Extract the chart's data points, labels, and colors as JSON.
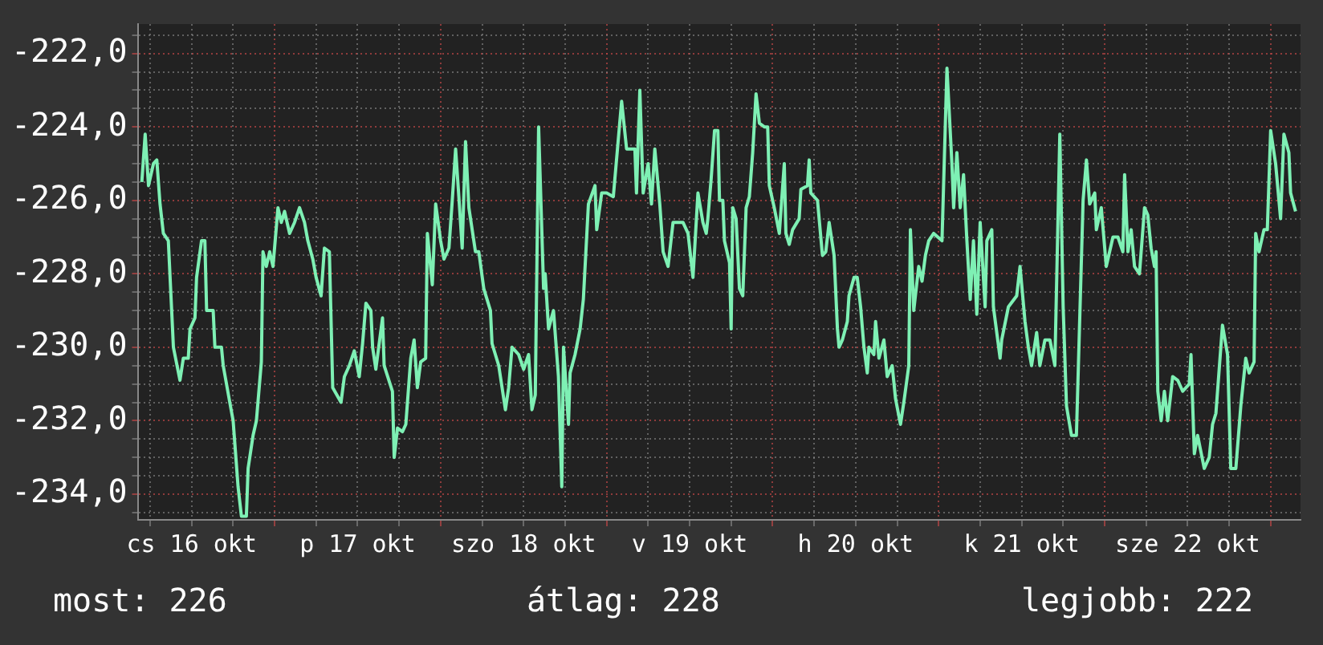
{
  "chart_data": {
    "type": "line",
    "color": "#7ef0b4",
    "marker": "none",
    "grid": true,
    "xlim": [
      "--10-16T04:19",
      "--10-23T04:19"
    ],
    "ylim": [
      -234.7,
      -221.2
    ],
    "xticks": [
      {
        "value": "--10-16T06:00",
        "label": null
      },
      {
        "value": "--10-16T12:00",
        "label": "cs 16 okt"
      },
      {
        "value": "--10-16T18:00",
        "label": null
      },
      {
        "value": "--10-17T00:00",
        "label": null
      },
      {
        "value": "--10-17T06:00",
        "label": null
      },
      {
        "value": "--10-17T12:00",
        "label": "p 17 okt"
      },
      {
        "value": "--10-17T18:00",
        "label": null
      },
      {
        "value": "--10-18T00:00",
        "label": null
      },
      {
        "value": "--10-18T06:00",
        "label": null
      },
      {
        "value": "--10-18T12:00",
        "label": "szo 18 okt"
      },
      {
        "value": "--10-18T18:00",
        "label": null
      },
      {
        "value": "--10-19T00:00",
        "label": null
      },
      {
        "value": "--10-19T06:00",
        "label": null
      },
      {
        "value": "--10-19T12:00",
        "label": "v 19 okt"
      },
      {
        "value": "--10-19T18:00",
        "label": null
      },
      {
        "value": "--10-20T00:00",
        "label": null
      },
      {
        "value": "--10-20T06:00",
        "label": null
      },
      {
        "value": "--10-20T12:00",
        "label": "h 20 okt"
      },
      {
        "value": "--10-20T18:00",
        "label": null
      },
      {
        "value": "--10-21T00:00",
        "label": null
      },
      {
        "value": "--10-21T06:00",
        "label": null
      },
      {
        "value": "--10-21T12:00",
        "label": "k 21 okt"
      },
      {
        "value": "--10-21T18:00",
        "label": null
      },
      {
        "value": "--10-22T00:00",
        "label": null
      },
      {
        "value": "--10-22T06:00",
        "label": null
      },
      {
        "value": "--10-22T12:00",
        "label": "sze 22 okt"
      },
      {
        "value": "--10-22T18:00",
        "label": null
      },
      {
        "value": "--10-23T00:00",
        "label": null
      }
    ],
    "yticks": [
      {
        "value": -221.5,
        "label": null
      },
      {
        "value": -222,
        "label": "-222,0"
      },
      {
        "value": -222.5,
        "label": null
      },
      {
        "value": -223,
        "label": null
      },
      {
        "value": -223.5,
        "label": null
      },
      {
        "value": -224,
        "label": "-224,0"
      },
      {
        "value": -224.5,
        "label": null
      },
      {
        "value": -225,
        "label": null
      },
      {
        "value": -225.5,
        "label": null
      },
      {
        "value": -226,
        "label": "-226,0"
      },
      {
        "value": -226.5,
        "label": null
      },
      {
        "value": -227,
        "label": null
      },
      {
        "value": -227.5,
        "label": null
      },
      {
        "value": -228,
        "label": "-228,0"
      },
      {
        "value": -228.5,
        "label": null
      },
      {
        "value": -229,
        "label": null
      },
      {
        "value": -229.5,
        "label": null
      },
      {
        "value": -230,
        "label": "-230,0"
      },
      {
        "value": -230.5,
        "label": null
      },
      {
        "value": -231,
        "label": null
      },
      {
        "value": -231.5,
        "label": null
      },
      {
        "value": -232,
        "label": "-232,0"
      },
      {
        "value": -232.5,
        "label": null
      },
      {
        "value": -233,
        "label": null
      },
      {
        "value": -233.5,
        "label": null
      },
      {
        "value": -234,
        "label": "-234,0"
      },
      {
        "value": -234.5,
        "label": null
      }
    ],
    "x": [
      "--10-16T04:48",
      "--10-16T05:17",
      "--10-16T05:46",
      "--10-16T06:29",
      "--10-16T06:58",
      "--10-16T07:26",
      "--10-16T07:55",
      "--10-16T08:38",
      "--10-16T09:07",
      "--10-16T09:22",
      "--10-16T10:19",
      "--10-16T10:48",
      "--10-16T11:31",
      "--10-16T11:46",
      "--10-16T12:29",
      "--10-16T12:43",
      "--10-16T13:26",
      "--10-16T13:55",
      "--10-16T14:10",
      "--10-16T15:07",
      "--10-16T15:22",
      "--10-16T16:19",
      "--10-16T16:34",
      "--10-16T17:31",
      "--10-16T18:00",
      "--10-16T18:43",
      "--10-16T19:12",
      "--10-16T19:55",
      "--10-16T20:10",
      "--10-16T20:53",
      "--10-16T21:22",
      "--10-16T22:05",
      "--10-16T22:19",
      "--10-16T22:48",
      "--10-16T23:17",
      "--10-16T23:46",
      "--10-17T00:29",
      "--10-17T00:58",
      "--10-17T01:26",
      "--10-17T02:10",
      "--10-17T02:53",
      "--10-17T03:36",
      "--10-17T04:19",
      "--10-17T04:48",
      "--10-17T05:31",
      "--10-17T06:00",
      "--10-17T06:43",
      "--10-17T07:12",
      "--10-17T07:55",
      "--10-17T08:24",
      "--10-17T09:36",
      "--10-17T10:05",
      "--10-17T10:48",
      "--10-17T11:31",
      "--10-17T12:14",
      "--10-17T12:43",
      "--10-17T13:12",
      "--10-17T13:55",
      "--10-17T14:10",
      "--10-17T14:38",
      "--10-17T15:36",
      "--10-17T15:50",
      "--10-17T17:02",
      "--10-17T17:17",
      "--10-17T17:46",
      "--10-17T18:29",
      "--10-17T18:58",
      "--10-17T19:41",
      "--10-17T20:10",
      "--10-17T20:38",
      "--10-17T21:07",
      "--10-17T21:50",
      "--10-17T22:05",
      "--10-17T22:48",
      "--10-17T23:17",
      "--10-18T00:00",
      "--10-18T00:29",
      "--10-18T01:12",
      "--10-18T01:41",
      "--10-18T02:10",
      "--10-18T02:38",
      "--10-18T03:07",
      "--10-18T03:36",
      "--10-18T04:05",
      "--10-18T05:02",
      "--10-18T05:31",
      "--10-18T06:14",
      "--10-18T06:43",
      "--10-18T07:12",
      "--10-18T07:26",
      "--10-18T08:24",
      "--10-18T09:22",
      "--10-18T09:50",
      "--10-18T10:19",
      "--10-18T11:17",
      "--10-18T12:00",
      "--10-18T12:43",
      "--10-18T13:12",
      "--10-18T13:41",
      "--10-18T14:10",
      "--10-18T14:53",
      "--10-18T15:07",
      "--10-18T15:36",
      "--10-18T16:19",
      "--10-18T17:02",
      "--10-18T17:31",
      "--10-18T17:46",
      "--10-18T18:29",
      "--10-18T18:43",
      "--10-18T19:26",
      "--10-18T20:10",
      "--10-18T20:38",
      "--10-18T21:22",
      "--10-18T22:19",
      "--10-18T22:34",
      "--10-18T23:17",
      "--10-19T00:00",
      "--10-19T00:58",
      "--10-19T02:10",
      "--10-19T02:53",
      "--10-19T04:05",
      "--10-19T04:19",
      "--10-19T04:48",
      "--10-19T05:17",
      "--10-19T06:00",
      "--10-19T06:29",
      "--10-19T06:58",
      "--10-19T07:41",
      "--10-19T08:10",
      "--10-19T08:53",
      "--10-19T09:36",
      "--10-19T11:02",
      "--10-19T11:46",
      "--10-19T12:29",
      "--10-19T13:12",
      "--10-19T13:55",
      "--10-19T14:24",
      "--10-19T14:38",
      "--10-19T15:07",
      "--10-19T15:36",
      "--10-19T16:05",
      "--10-19T16:19",
      "--10-19T16:48",
      "--10-19T17:02",
      "--10-19T17:46",
      "--10-19T18:00",
      "--10-19T18:14",
      "--10-19T18:43",
      "--10-19T19:12",
      "--10-19T19:41",
      "--10-19T20:10",
      "--10-19T20:38",
      "--10-19T21:07",
      "--10-19T21:36",
      "--10-19T22:05",
      "--10-19T22:48",
      "--10-19T23:17",
      "--10-19T23:31",
      "--10-20T00:14",
      "--10-20T00:58",
      "--10-20T01:41",
      "--10-20T01:55",
      "--10-20T02:24",
      "--10-20T02:53",
      "--10-20T03:50",
      "--10-20T04:05",
      "--10-20T05:02",
      "--10-20T05:17",
      "--10-20T05:31",
      "--10-20T06:29",
      "--10-20T07:12",
      "--10-20T07:41",
      "--10-20T08:10",
      "--10-20T08:53",
      "--10-20T09:22",
      "--10-20T09:36",
      "--10-20T10:05",
      "--10-20T10:48",
      "--10-20T11:02",
      "--10-20T11:46",
      "--10-20T12:14",
      "--10-20T12:43",
      "--10-20T13:12",
      "--10-20T13:41",
      "--10-20T13:55",
      "--10-20T14:38",
      "--10-20T14:53",
      "--10-20T15:22",
      "--10-20T16:05",
      "--10-20T16:34",
      "--10-20T17:17",
      "--10-20T17:46",
      "--10-20T18:29",
      "--10-20T18:58",
      "--10-20T19:41",
      "--10-20T19:55",
      "--10-20T20:24",
      "--10-20T21:07",
      "--10-20T21:36",
      "--10-20T22:05",
      "--10-20T22:34",
      "--10-20T23:17",
      "--10-21T00:29",
      "--10-21T01:12",
      "--10-21T01:55",
      "--10-21T02:10",
      "--10-21T02:38",
      "--10-21T03:07",
      "--10-21T03:36",
      "--10-21T04:05",
      "--10-21T04:34",
      "--10-21T05:02",
      "--10-21T05:31",
      "--10-21T06:00",
      "--10-21T06:43",
      "--10-21T06:58",
      "--10-21T07:41",
      "--10-21T07:55",
      "--10-21T08:53",
      "--10-21T09:07",
      "--10-21T10:05",
      "--10-21T11:17",
      "--10-21T11:46",
      "--10-21T12:29",
      "--10-21T12:58",
      "--10-21T13:26",
      "--10-21T14:10",
      "--10-21T14:38",
      "--10-21T15:22",
      "--10-21T16:05",
      "--10-21T16:48",
      "--10-21T17:31",
      "--10-21T18:00",
      "--10-21T18:29",
      "--10-21T19:12",
      "--10-21T19:55",
      "--10-21T20:53",
      "--10-21T21:22",
      "--10-21T21:50",
      "--10-21T22:34",
      "--10-21T22:48",
      "--10-21T23:31",
      "--10-22T00:14",
      "--10-22T01:12",
      "--10-22T01:55",
      "--10-22T02:38",
      "--10-22T02:53",
      "--10-22T03:22",
      "--10-22T03:50",
      "--10-22T04:19",
      "--10-22T05:02",
      "--10-22T05:46",
      "--10-22T06:14",
      "--10-22T06:43",
      "--10-22T07:12",
      "--10-22T07:26",
      "--10-22T07:41",
      "--10-22T08:10",
      "--10-22T08:38",
      "--10-22T09:07",
      "--10-22T09:50",
      "--10-22T10:34",
      "--10-22T11:17",
      "--10-22T12:14",
      "--10-22T12:29",
      "--10-22T12:58",
      "--10-22T13:26",
      "--10-22T14:24",
      "--10-22T15:07",
      "--10-22T15:36",
      "--10-22T16:05",
      "--10-22T17:02",
      "--10-22T17:46",
      "--10-22T18:14",
      "--10-22T18:58",
      "--10-22T19:41",
      "--10-22T20:24",
      "--10-22T20:53",
      "--10-22T21:36",
      "--10-22T21:50",
      "--10-22T22:19",
      "--10-22T23:02",
      "--10-22T23:31",
      "--10-23T00:00",
      "--10-23T00:43",
      "--10-23T01:26",
      "--10-23T01:55",
      "--10-23T02:38",
      "--10-23T02:53",
      "--10-23T03:36"
    ],
    "values": [
      -225.5,
      -224.2,
      -225.6,
      -225.0,
      -224.9,
      -226.1,
      -226.9,
      -227.1,
      -229.0,
      -230.0,
      -230.9,
      -230.3,
      -230.3,
      -229.5,
      -229.2,
      -228.1,
      -227.1,
      -227.1,
      -229.0,
      -229.0,
      -230.0,
      -230.0,
      -230.5,
      -231.5,
      -232.0,
      -233.8,
      -234.6,
      -234.6,
      -233.3,
      -232.4,
      -232.0,
      -230.4,
      -227.4,
      -227.8,
      -227.4,
      -227.8,
      -226.2,
      -226.6,
      -226.3,
      -226.9,
      -226.6,
      -226.2,
      -226.6,
      -227.1,
      -227.6,
      -228.1,
      -228.6,
      -227.3,
      -227.4,
      -231.1,
      -231.5,
      -230.8,
      -230.5,
      -230.1,
      -230.8,
      -229.9,
      -228.8,
      -229.0,
      -230.0,
      -230.6,
      -229.2,
      -230.5,
      -231.2,
      -233.0,
      -232.2,
      -232.3,
      -232.1,
      -230.3,
      -229.8,
      -231.1,
      -230.4,
      -230.3,
      -226.9,
      -228.3,
      -226.1,
      -227.1,
      -227.6,
      -227.3,
      -226.0,
      -224.6,
      -225.9,
      -227.3,
      -224.4,
      -226.2,
      -227.4,
      -227.4,
      -228.4,
      -228.7,
      -229.0,
      -229.9,
      -230.5,
      -231.7,
      -231.1,
      -230.0,
      -230.2,
      -230.6,
      -230.2,
      -231.7,
      -231.3,
      -224.0,
      -228.4,
      -228.0,
      -229.5,
      -229.0,
      -230.8,
      -233.8,
      -230.0,
      -232.1,
      -230.7,
      -230.2,
      -229.5,
      -228.7,
      -226.1,
      -225.6,
      -226.8,
      -225.8,
      -225.8,
      -225.9,
      -223.3,
      -224.6,
      -224.6,
      -225.8,
      -223.0,
      -225.8,
      -225.0,
      -226.1,
      -224.6,
      -226.1,
      -227.4,
      -227.8,
      -226.6,
      -226.6,
      -226.9,
      -228.1,
      -225.8,
      -226.6,
      -226.9,
      -226.5,
      -225.4,
      -224.1,
      -224.1,
      -226.0,
      -226.0,
      -227.1,
      -227.7,
      -229.5,
      -226.2,
      -226.5,
      -228.4,
      -228.6,
      -226.2,
      -225.9,
      -224.7,
      -223.1,
      -223.9,
      -224.0,
      -224.0,
      -225.6,
      -226.2,
      -226.9,
      -225.0,
      -226.9,
      -227.2,
      -226.8,
      -226.5,
      -225.7,
      -225.6,
      -224.9,
      -225.8,
      -226.0,
      -227.5,
      -227.4,
      -226.6,
      -227.5,
      -229.5,
      -230.0,
      -229.8,
      -229.3,
      -228.6,
      -228.1,
      -228.1,
      -228.9,
      -230.0,
      -230.7,
      -230.0,
      -230.2,
      -229.3,
      -230.3,
      -229.8,
      -230.8,
      -230.5,
      -231.4,
      -232.1,
      -231.5,
      -230.5,
      -226.8,
      -229.0,
      -227.8,
      -228.2,
      -227.5,
      -227.1,
      -226.9,
      -227.1,
      -222.4,
      -225.0,
      -226.2,
      -224.7,
      -226.2,
      -225.3,
      -227.1,
      -228.7,
      -227.1,
      -229.1,
      -226.6,
      -228.9,
      -227.1,
      -226.8,
      -228.9,
      -230.3,
      -229.8,
      -228.9,
      -228.6,
      -227.8,
      -229.3,
      -230.0,
      -230.5,
      -229.6,
      -230.5,
      -229.8,
      -229.8,
      -230.5,
      -224.2,
      -228.9,
      -231.6,
      -232.4,
      -232.4,
      -226.0,
      -224.9,
      -226.1,
      -225.8,
      -226.8,
      -226.2,
      -227.8,
      -227.0,
      -227.0,
      -227.4,
      -225.3,
      -227.4,
      -226.8,
      -227.8,
      -228.0,
      -226.2,
      -226.4,
      -227.3,
      -227.8,
      -227.4,
      -231.2,
      -232.0,
      -231.2,
      -232.0,
      -230.8,
      -230.9,
      -231.2,
      -231.0,
      -230.2,
      -232.9,
      -232.4,
      -233.3,
      -233.0,
      -232.1,
      -231.8,
      -229.4,
      -230.2,
      -233.3,
      -233.3,
      -231.6,
      -230.3,
      -230.7,
      -230.4,
      -226.9,
      -227.4,
      -226.8,
      -226.8,
      -224.1,
      -225.0,
      -226.5,
      -224.2,
      -224.7,
      -225.8,
      -226.3
    ],
    "annotations": [
      "most: 226",
      "átlag: 228",
      "legjobb: 222"
    ]
  }
}
